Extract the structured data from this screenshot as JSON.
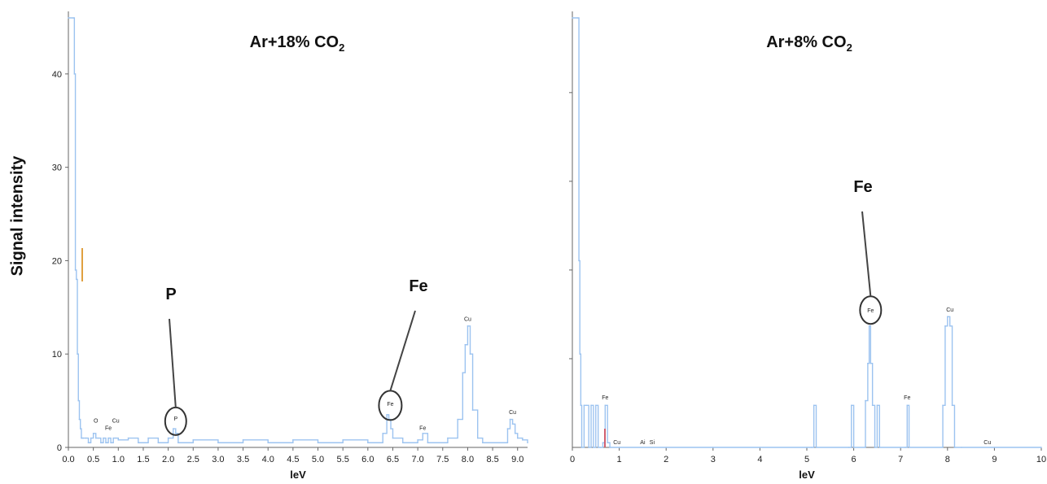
{
  "chart_data": [
    {
      "type": "line",
      "title": "Ar+18% CO",
      "title_subscript": "2",
      "ylabel": "Signal intensity",
      "xlabel": "leV",
      "xlim": [
        0,
        9.2
      ],
      "ylim": [
        0,
        46
      ],
      "xticks": [
        "0.0",
        "0.5",
        "1.0",
        "1.5",
        "2.0",
        "2.5",
        "3.0",
        "3.5",
        "4.0",
        "4.5",
        "5.0",
        "5.5",
        "6.0",
        "6.5",
        "7.0",
        "7.5",
        "8.0",
        "8.5",
        "9.0"
      ],
      "yticks": [
        "0",
        "10",
        "20",
        "30",
        "40"
      ],
      "series_color": "#9cc3f0",
      "series": [
        {
          "x": [
            0.0,
            0.1,
            0.12,
            0.14,
            0.16,
            0.18,
            0.2,
            0.22,
            0.24,
            0.26,
            0.28,
            0.3,
            0.35,
            0.4,
            0.45,
            0.5,
            0.55,
            0.6,
            0.65,
            0.7,
            0.75,
            0.8,
            0.85,
            0.9,
            0.95,
            1.0,
            1.2,
            1.4,
            1.6,
            1.8,
            2.0,
            2.1,
            2.15,
            2.2,
            2.5,
            3.0,
            3.5,
            4.0,
            4.5,
            5.0,
            5.5,
            6.0,
            6.3,
            6.38,
            6.42,
            6.46,
            6.5,
            6.7,
            7.0,
            7.1,
            7.2,
            7.6,
            7.8,
            7.9,
            7.95,
            8.0,
            8.05,
            8.1,
            8.2,
            8.3,
            8.6,
            8.8,
            8.85,
            8.9,
            8.95,
            9.0,
            9.1,
            9.2
          ],
          "y": [
            46,
            46,
            40,
            19,
            18,
            10,
            5,
            3,
            2,
            1,
            1,
            1,
            1,
            0.5,
            1,
            1.5,
            1,
            1,
            0.5,
            1,
            0.5,
            1,
            0.5,
            1,
            1,
            0.8,
            1,
            0.5,
            1,
            0.5,
            1,
            2,
            1.5,
            0.5,
            0.8,
            0.5,
            0.8,
            0.5,
            0.8,
            0.5,
            0.8,
            0.5,
            1.5,
            3.5,
            3,
            2,
            1,
            0.5,
            0.8,
            1.5,
            0.5,
            1,
            3,
            8,
            11,
            13,
            10,
            4,
            1,
            0.5,
            0.5,
            2,
            3,
            2.5,
            1.5,
            1,
            0.8,
            0.5
          ]
        }
      ],
      "peak_labels": [
        "O",
        "Fe",
        "Cu",
        "P",
        "Fe",
        "Fe",
        "Cu",
        "Cu"
      ],
      "annotations": [
        "P",
        "Fe"
      ],
      "marker_color": "#e0a040"
    },
    {
      "type": "line",
      "title": "Ar+8% CO",
      "title_subscript": "2",
      "xlabel": "leV",
      "xlim": [
        0,
        10
      ],
      "ylim": [
        0,
        46
      ],
      "xticks": [
        "0",
        "1",
        "2",
        "3",
        "4",
        "5",
        "6",
        "7",
        "8",
        "9",
        "10"
      ],
      "series_color": "#9cc3f0",
      "series": [
        {
          "x": [
            0.0,
            0.12,
            0.14,
            0.16,
            0.18,
            0.2,
            0.25,
            0.3,
            0.35,
            0.4,
            0.45,
            0.5,
            0.55,
            0.6,
            0.65,
            0.7,
            0.75,
            0.8,
            1.0,
            2.0,
            3.0,
            4.0,
            5.0,
            5.1,
            5.15,
            5.2,
            5.9,
            5.95,
            6.0,
            6.25,
            6.3,
            6.33,
            6.36,
            6.4,
            6.45,
            6.5,
            6.55,
            7.0,
            7.1,
            7.14,
            7.18,
            7.9,
            7.95,
            8.0,
            8.05,
            8.1,
            8.15,
            8.3,
            9.0,
            10.0
          ],
          "y": [
            46,
            46,
            20,
            10,
            4.5,
            0,
            4.5,
            4.5,
            0,
            4.5,
            0,
            4.5,
            0,
            0,
            0.5,
            4.5,
            0.5,
            0,
            0,
            0,
            0,
            0,
            0,
            0,
            4.5,
            0,
            0,
            4.5,
            0,
            5,
            9,
            13,
            9,
            4.5,
            0,
            4.5,
            0,
            0,
            0,
            4.5,
            0,
            4.5,
            13,
            14,
            13,
            4.5,
            0,
            0,
            0,
            0
          ]
        }
      ],
      "peak_labels": [
        "Fe",
        "Cu",
        "Ai",
        "Si",
        "Fe",
        "Cu",
        "Fe",
        "Cu"
      ],
      "annotations": [
        "Fe"
      ],
      "marker_color": "#d06070"
    }
  ]
}
